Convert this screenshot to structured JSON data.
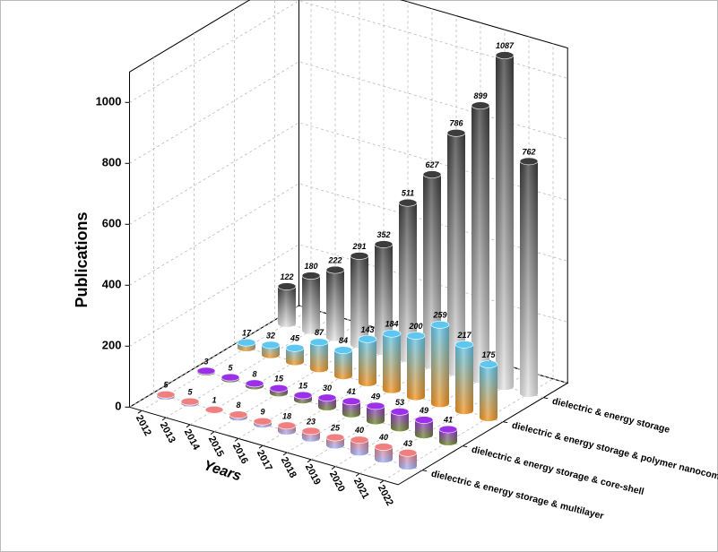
{
  "chart_data": {
    "type": "bar3d",
    "xlabel": "Years",
    "ylabel": "Publications",
    "categories": [
      "2012",
      "2013",
      "2014",
      "2015",
      "2016",
      "2017",
      "2018",
      "2019",
      "2020",
      "2021",
      "2022"
    ],
    "ylim": [
      0,
      1100
    ],
    "yticks": [
      0,
      200,
      400,
      600,
      800,
      1000
    ],
    "grid": true,
    "series": [
      {
        "name": "dielectric & energy storage",
        "colors": [
          "#3c3c3c",
          "#e6e6e6"
        ],
        "values": [
          122,
          180,
          222,
          291,
          352,
          511,
          627,
          786,
          899,
          1087,
          762
        ]
      },
      {
        "name": "dielectric & energy storage & polymer nanocomposites",
        "colors": [
          "#5cc8f2",
          "#f7941d"
        ],
        "values": [
          17,
          32,
          45,
          87,
          84,
          143,
          184,
          200,
          259,
          217,
          175
        ]
      },
      {
        "name": "dielectric & energy storage & core-shell",
        "colors": [
          "#9b30e8",
          "#6b8e23"
        ],
        "values": [
          3,
          5,
          8,
          15,
          15,
          30,
          41,
          49,
          53,
          49,
          41
        ]
      },
      {
        "name": "dielectric & energy storage & multilayer",
        "colors": [
          "#f07f7f",
          "#9db4ff"
        ],
        "values": [
          5,
          5,
          1,
          8,
          9,
          18,
          23,
          25,
          40,
          40,
          43
        ]
      }
    ]
  }
}
